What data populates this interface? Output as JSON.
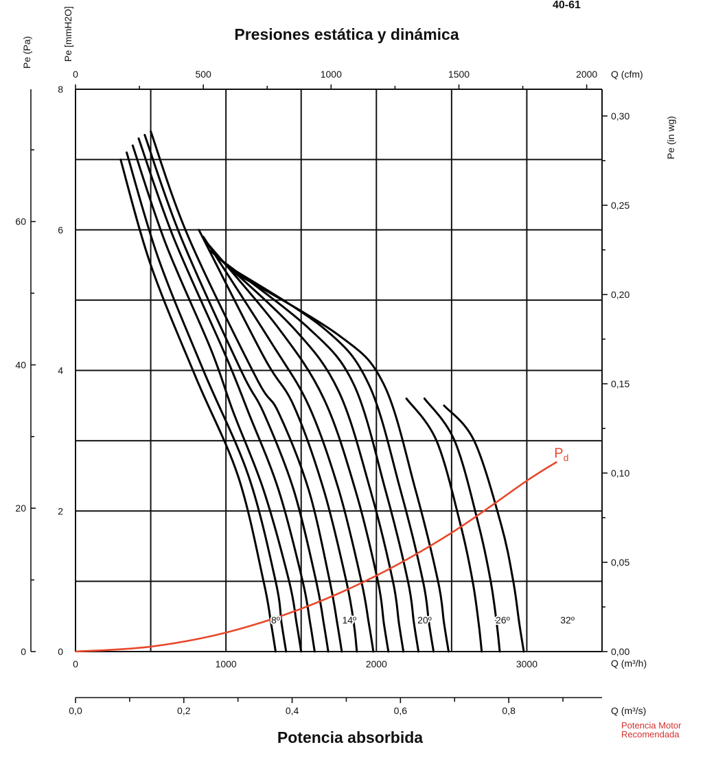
{
  "page_label": "40-61",
  "chart_data": {
    "type": "line",
    "title": "Presiones estática y dinámica",
    "footer_title": "Potencia absorbida",
    "x_axes": {
      "m3h": {
        "label": "Q (m³/h)",
        "range": [
          0,
          3500
        ],
        "ticks": [
          0,
          1000,
          2000,
          3000
        ]
      },
      "cfm": {
        "label": "Q (cfm)",
        "ticks": [
          0,
          500,
          1000,
          1500,
          2000
        ]
      },
      "m3s": {
        "label": "Q (m³/s)",
        "ticks": [
          "0,0",
          "0,2",
          "0,4",
          "0,6",
          "0,8"
        ],
        "tick_values": [
          0,
          0.2,
          0.4,
          0.6,
          0.8
        ]
      }
    },
    "y_axes": {
      "mmH2O": {
        "label": "Pe [mmH2O]",
        "range": [
          0,
          8
        ],
        "ticks": [
          0,
          2,
          4,
          6,
          8
        ]
      },
      "Pa": {
        "label": "Pe (Pa)",
        "ticks": [
          0,
          20,
          40,
          60
        ]
      },
      "inwg": {
        "label": "Pe (in wg)",
        "ticks": [
          "0,00",
          "0,05",
          "0,10",
          "0,15",
          "0,20",
          "0,25",
          "0,30"
        ],
        "tick_values": [
          0,
          0.05,
          0.1,
          0.15,
          0.2,
          0.25,
          0.3
        ]
      }
    },
    "grid": true,
    "series": [
      {
        "points": [
          [
            300,
            7.0
          ],
          [
            500,
            5.5
          ],
          [
            800,
            3.9
          ],
          [
            1080,
            2.5
          ],
          [
            1250,
            1.0
          ],
          [
            1300,
            0.4
          ],
          [
            1330,
            0.0
          ]
        ]
      },
      {
        "name": "8º",
        "points": [
          [
            340,
            7.1
          ],
          [
            550,
            5.6
          ],
          [
            850,
            4.0
          ],
          [
            1150,
            2.5
          ],
          [
            1330,
            1.0
          ],
          [
            1370,
            0.4
          ],
          [
            1400,
            0.0
          ]
        ]
      },
      {
        "points": [
          [
            380,
            7.2
          ],
          [
            600,
            5.8
          ],
          [
            900,
            4.3
          ],
          [
            1050,
            3.4
          ],
          [
            1250,
            2.3
          ],
          [
            1420,
            1.0
          ],
          [
            1470,
            0.4
          ],
          [
            1500,
            0.0
          ]
        ]
      },
      {
        "points": [
          [
            420,
            7.3
          ],
          [
            650,
            5.9
          ],
          [
            1000,
            4.2
          ],
          [
            1150,
            3.4
          ],
          [
            1350,
            2.3
          ],
          [
            1510,
            1.0
          ],
          [
            1560,
            0.4
          ],
          [
            1590,
            0.0
          ]
        ]
      },
      {
        "points": [
          [
            460,
            7.35
          ],
          [
            700,
            5.9
          ],
          [
            1100,
            4.0
          ],
          [
            1250,
            3.4
          ],
          [
            1450,
            2.3
          ],
          [
            1600,
            1.0
          ],
          [
            1650,
            0.4
          ],
          [
            1680,
            0.0
          ]
        ]
      },
      {
        "name": "14º",
        "points": [
          [
            500,
            7.4
          ],
          [
            750,
            5.9
          ],
          [
            1200,
            3.9
          ],
          [
            1350,
            3.4
          ],
          [
            1550,
            2.3
          ],
          [
            1690,
            1.0
          ],
          [
            1740,
            0.4
          ],
          [
            1770,
            0.0
          ]
        ]
      },
      {
        "points": [
          [
            820,
            6.0
          ],
          [
            1250,
            4.2
          ],
          [
            1450,
            3.5
          ],
          [
            1650,
            2.3
          ],
          [
            1800,
            1.0
          ],
          [
            1850,
            0.4
          ],
          [
            1870,
            0.0
          ]
        ]
      },
      {
        "points": [
          [
            850,
            5.9
          ],
          [
            1300,
            4.4
          ],
          [
            1550,
            3.5
          ],
          [
            1750,
            2.3
          ],
          [
            1900,
            1.0
          ],
          [
            1950,
            0.4
          ],
          [
            1980,
            0.0
          ]
        ]
      },
      {
        "name": "20º",
        "points": [
          [
            880,
            5.8
          ],
          [
            1350,
            4.6
          ],
          [
            1650,
            3.6
          ],
          [
            1860,
            2.3
          ],
          [
            2010,
            1.0
          ],
          [
            2050,
            0.4
          ],
          [
            2080,
            0.0
          ]
        ]
      },
      {
        "points": [
          [
            900,
            5.7
          ],
          [
            1450,
            4.6
          ],
          [
            1750,
            3.7
          ],
          [
            1960,
            2.3
          ],
          [
            2110,
            1.0
          ],
          [
            2150,
            0.4
          ],
          [
            2180,
            0.0
          ]
        ]
      },
      {
        "points": [
          [
            950,
            5.6
          ],
          [
            1550,
            4.6
          ],
          [
            1850,
            3.8
          ],
          [
            2060,
            2.3
          ],
          [
            2210,
            1.0
          ],
          [
            2250,
            0.4
          ],
          [
            2280,
            0.0
          ]
        ]
      },
      {
        "points": [
          [
            1000,
            5.5
          ],
          [
            1650,
            4.6
          ],
          [
            1950,
            3.8
          ],
          [
            2160,
            2.3
          ],
          [
            2310,
            1.0
          ],
          [
            2350,
            0.4
          ],
          [
            2380,
            0.0
          ]
        ]
      },
      {
        "points": [
          [
            1050,
            5.4
          ],
          [
            1750,
            4.5
          ],
          [
            2050,
            3.8
          ],
          [
            2260,
            2.3
          ],
          [
            2410,
            1.0
          ],
          [
            2450,
            0.4
          ],
          [
            2480,
            0.0
          ]
        ]
      },
      {
        "name": "26º",
        "points": [
          [
            2200,
            3.6
          ],
          [
            2400,
            3.0
          ],
          [
            2560,
            1.8
          ],
          [
            2640,
            1.0
          ],
          [
            2680,
            0.4
          ],
          [
            2700,
            0.0
          ]
        ]
      },
      {
        "points": [
          [
            2320,
            3.6
          ],
          [
            2520,
            3.0
          ],
          [
            2680,
            1.8
          ],
          [
            2760,
            1.0
          ],
          [
            2800,
            0.4
          ],
          [
            2820,
            0.0
          ]
        ]
      },
      {
        "name": "32º",
        "points": [
          [
            2450,
            3.5
          ],
          [
            2650,
            3.0
          ],
          [
            2830,
            1.8
          ],
          [
            2910,
            1.0
          ],
          [
            2950,
            0.4
          ],
          [
            2980,
            0.0
          ]
        ]
      }
    ],
    "pd_curve": {
      "name": "Pd",
      "points": [
        [
          0,
          0
        ],
        [
          500,
          0.07
        ],
        [
          1000,
          0.27
        ],
        [
          1500,
          0.61
        ],
        [
          2000,
          1.08
        ],
        [
          2500,
          1.69
        ],
        [
          3000,
          2.43
        ],
        [
          3200,
          2.7
        ]
      ]
    },
    "angle_labels": [
      {
        "text": "8º",
        "x": 1330,
        "y": 0.45
      },
      {
        "text": "14º",
        "x": 1820,
        "y": 0.45
      },
      {
        "text": "20º",
        "x": 2320,
        "y": 0.45
      },
      {
        "text": "26º",
        "x": 2840,
        "y": 0.45
      },
      {
        "text": "32º",
        "x": 3270,
        "y": 0.45
      }
    ]
  },
  "note": {
    "line1": "Potencia Motor",
    "line2": "Recomendada"
  }
}
